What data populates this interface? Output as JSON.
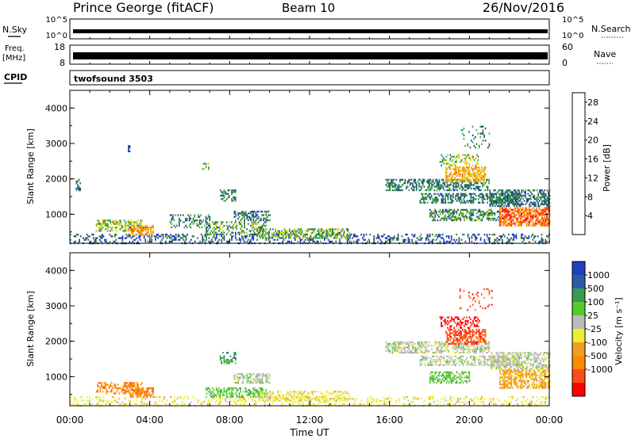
{
  "header": {
    "station": "Prince George (fitACF)",
    "beam": "Beam 10",
    "date": "26/Nov/2016"
  },
  "top_panels": {
    "nsky_label": "N.Sky",
    "nsky_ticks": [
      "10^5",
      "10^0"
    ],
    "nsearch_label": "N.Search",
    "nsearch_ticks": [
      "10^5",
      "10^0"
    ],
    "freq_label_line1": "Freq.",
    "freq_label_line2": "[MHz]",
    "freq_ticks": [
      "18",
      "8"
    ],
    "nave_label": "Nave",
    "nave_ticks": [
      "60",
      "0"
    ],
    "cpid_label": "CPID",
    "cpid_value": "twofsound 3503"
  },
  "colors": {
    "power": [
      "#1a1aff",
      "#1f3fa8",
      "#2d6e3a",
      "#3aa84f",
      "#d6d600",
      "#f5a000",
      "#ff7a1a",
      "#ff1010"
    ],
    "velocity": [
      "#2040c0",
      "#2a5aa8",
      "#3a9a50",
      "#55cc2a",
      "#bbbbbb",
      "#eeee33",
      "#f0a020",
      "#ff8a00",
      "#ff4a1a",
      "#ff0000"
    ]
  },
  "chart_data": [
    {
      "type": "heatmap",
      "name": "power",
      "xlabel": "",
      "ylabel": "Slant Range [km]",
      "x_range_hours": [
        0,
        24
      ],
      "ylim": [
        180,
        4500
      ],
      "yticks": [
        "1000",
        "2000",
        "3000",
        "4000"
      ],
      "colorbar": {
        "label": "Power [dB]",
        "ticks": [
          "4",
          "8",
          "12",
          "16",
          "20",
          "24",
          "28"
        ],
        "range": [
          0,
          30
        ]
      },
      "regions": [
        {
          "t0": 0.0,
          "t1": 24.0,
          "r0": 200,
          "r1": 450,
          "value": 7,
          "dens": 0.28
        },
        {
          "t0": 0.3,
          "t1": 0.5,
          "r0": 1700,
          "r1": 2000,
          "value": 8,
          "dens": 0.55
        },
        {
          "t0": 1.3,
          "t1": 3.6,
          "r0": 550,
          "r1": 850,
          "value": 15,
          "dens": 0.55
        },
        {
          "t0": 3.0,
          "t1": 4.2,
          "r0": 450,
          "r1": 700,
          "value": 22,
          "dens": 0.65
        },
        {
          "t0": 5.0,
          "t1": 7.0,
          "r0": 650,
          "r1": 1000,
          "value": 10,
          "dens": 0.35
        },
        {
          "t0": 6.8,
          "t1": 9.8,
          "r0": 450,
          "r1": 800,
          "value": 12,
          "dens": 0.45
        },
        {
          "t0": 7.5,
          "t1": 8.3,
          "r0": 1400,
          "r1": 1700,
          "value": 10,
          "dens": 0.55
        },
        {
          "t0": 8.2,
          "t1": 10.0,
          "r0": 820,
          "r1": 1100,
          "value": 9,
          "dens": 0.55
        },
        {
          "t0": 9.5,
          "t1": 14.0,
          "r0": 350,
          "r1": 600,
          "value": 13,
          "dens": 0.5
        },
        {
          "t0": 6.6,
          "t1": 6.95,
          "r0": 2300,
          "r1": 2450,
          "value": 11,
          "dens": 0.6
        },
        {
          "t0": 2.9,
          "t1": 3.0,
          "r0": 2800,
          "r1": 2950,
          "value": 6,
          "dens": 0.6
        },
        {
          "t0": 15.8,
          "t1": 21.0,
          "r0": 1700,
          "r1": 2000,
          "value": 10,
          "dens": 0.55
        },
        {
          "t0": 17.5,
          "t1": 22.5,
          "r0": 1350,
          "r1": 1600,
          "value": 10,
          "dens": 0.55
        },
        {
          "t0": 18.8,
          "t1": 20.8,
          "r0": 1950,
          "r1": 2350,
          "value": 20,
          "dens": 0.65
        },
        {
          "t0": 18.5,
          "t1": 20.5,
          "r0": 2400,
          "r1": 2700,
          "value": 15,
          "dens": 0.35
        },
        {
          "t0": 18.0,
          "t1": 21.5,
          "r0": 850,
          "r1": 1150,
          "value": 11,
          "dens": 0.55
        },
        {
          "t0": 21.0,
          "t1": 24.0,
          "r0": 1250,
          "r1": 1700,
          "value": 9,
          "dens": 0.6
        },
        {
          "t0": 21.5,
          "t1": 24.0,
          "r0": 700,
          "r1": 1200,
          "value": 24,
          "dens": 0.72
        },
        {
          "t0": 19.5,
          "t1": 21.2,
          "r0": 2900,
          "r1": 3500,
          "value": 10,
          "dens": 0.12
        }
      ]
    },
    {
      "type": "heatmap",
      "name": "velocity",
      "xlabel": "Time UT",
      "ylabel": "Slant Range [km]",
      "x_range_hours": [
        0,
        24
      ],
      "xticks": [
        "00:00",
        "04:00",
        "08:00",
        "12:00",
        "16:00",
        "20:00",
        "00:00"
      ],
      "ylim": [
        180,
        4500
      ],
      "yticks": [
        "1000",
        "2000",
        "3000",
        "4000"
      ],
      "colorbar": {
        "label": "Velocity [m s⁻¹]",
        "ticks": [
          "1000",
          "500",
          "100",
          "25",
          "-25",
          "-100",
          "-500",
          "-1000"
        ]
      },
      "regions": [
        {
          "t0": 0.0,
          "t1": 24.0,
          "r0": 200,
          "r1": 450,
          "cls": 5,
          "dens": 0.26
        },
        {
          "t0": 1.3,
          "t1": 3.6,
          "r0": 550,
          "r1": 850,
          "cls": 7,
          "dens": 0.5
        },
        {
          "t0": 3.0,
          "t1": 4.2,
          "r0": 450,
          "r1": 700,
          "cls": 7,
          "dens": 0.6
        },
        {
          "t0": 6.8,
          "t1": 9.8,
          "r0": 450,
          "r1": 700,
          "cls": 3,
          "dens": 0.5
        },
        {
          "t0": 7.5,
          "t1": 8.3,
          "r0": 1400,
          "r1": 1700,
          "cls": 2,
          "dens": 0.55
        },
        {
          "t0": 8.2,
          "t1": 10.0,
          "r0": 820,
          "r1": 1100,
          "cls": 4,
          "dens": 0.55
        },
        {
          "t0": 9.5,
          "t1": 14.0,
          "r0": 350,
          "r1": 600,
          "cls": 5,
          "dens": 0.5
        },
        {
          "t0": 15.8,
          "t1": 21.0,
          "r0": 1700,
          "r1": 2000,
          "cls": 4,
          "dens": 0.55
        },
        {
          "t0": 17.5,
          "t1": 22.5,
          "r0": 1350,
          "r1": 1600,
          "cls": 4,
          "dens": 0.55
        },
        {
          "t0": 18.8,
          "t1": 20.8,
          "r0": 1950,
          "r1": 2350,
          "cls": 8,
          "dens": 0.62
        },
        {
          "t0": 18.5,
          "t1": 20.5,
          "r0": 2400,
          "r1": 2700,
          "cls": 9,
          "dens": 0.35
        },
        {
          "t0": 18.0,
          "t1": 20.0,
          "r0": 850,
          "r1": 1150,
          "cls": 3,
          "dens": 0.5
        },
        {
          "t0": 21.0,
          "t1": 24.0,
          "r0": 1250,
          "r1": 1700,
          "cls": 4,
          "dens": 0.55
        },
        {
          "t0": 21.5,
          "t1": 24.0,
          "r0": 700,
          "r1": 1200,
          "cls": 6,
          "dens": 0.65
        },
        {
          "t0": 19.5,
          "t1": 21.2,
          "r0": 2900,
          "r1": 3500,
          "cls": 8,
          "dens": 0.12
        }
      ]
    }
  ]
}
